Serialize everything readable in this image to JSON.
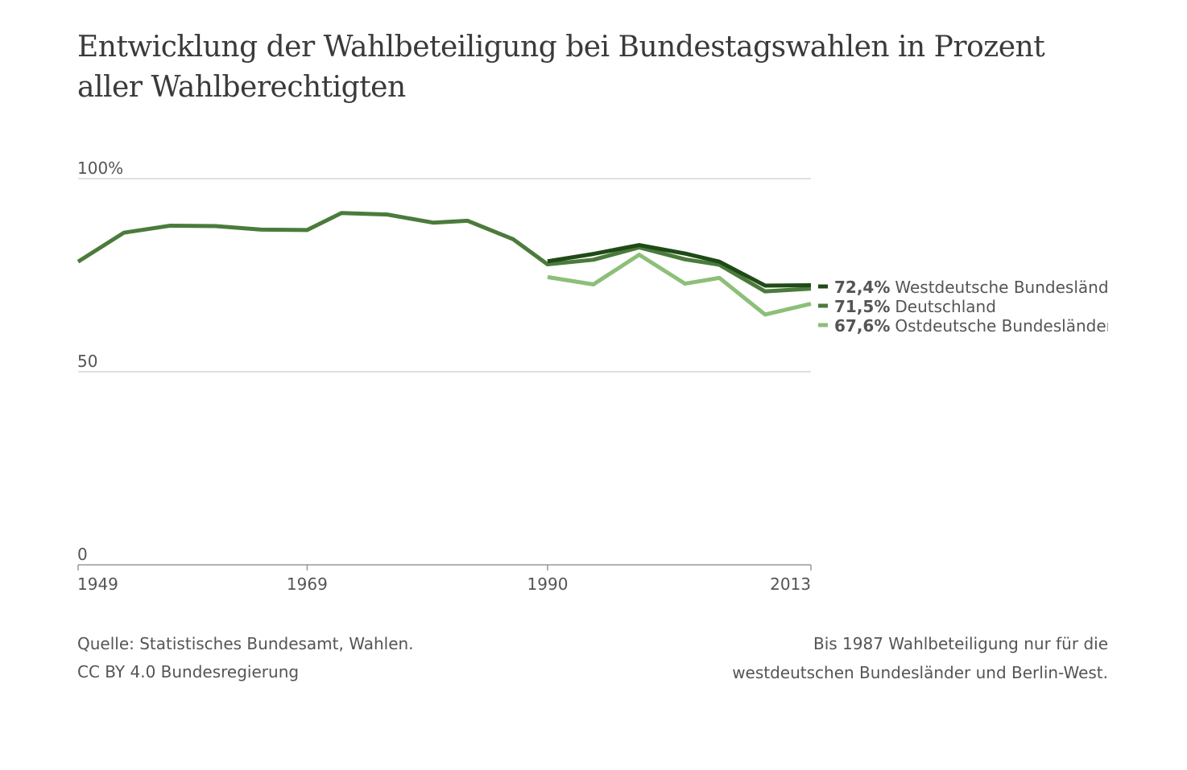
{
  "chart_data": {
    "type": "line",
    "title": "Entwicklung der Wahlbeteiligung bei Bundestagswahlen in Prozent aller Wahlberechtigten",
    "x": [
      1949,
      1953,
      1957,
      1961,
      1965,
      1969,
      1972,
      1976,
      1980,
      1983,
      1987,
      1990,
      1994,
      1998,
      2002,
      2005,
      2009,
      2013
    ],
    "series": [
      {
        "name": "Westdeutsche Bundesländer",
        "color": "#1f4a16",
        "values": [
          null,
          null,
          null,
          null,
          null,
          null,
          null,
          null,
          null,
          null,
          null,
          78.6,
          80.5,
          82.8,
          80.6,
          78.5,
          72.3,
          72.4
        ],
        "value_labels": [
          null,
          null,
          null,
          null,
          null,
          null,
          null,
          null,
          null,
          null,
          null,
          null,
          null,
          null,
          null,
          null,
          null,
          "72,4%"
        ]
      },
      {
        "name": "Deutschland",
        "color": "#4b7b3b",
        "values": [
          78.5,
          86.0,
          87.8,
          87.7,
          86.8,
          86.7,
          91.1,
          90.7,
          88.6,
          89.1,
          84.3,
          77.8,
          79.0,
          82.2,
          79.1,
          77.7,
          70.8,
          71.5
        ],
        "value_labels": [
          null,
          null,
          null,
          null,
          null,
          null,
          null,
          null,
          null,
          null,
          null,
          null,
          null,
          null,
          null,
          null,
          null,
          "71,5%"
        ]
      },
      {
        "name": "Ostdeutsche Bundesländer",
        "color": "#8cbf78",
        "values": [
          null,
          null,
          null,
          null,
          null,
          null,
          null,
          null,
          null,
          null,
          null,
          74.5,
          72.6,
          80.3,
          72.8,
          74.3,
          64.8,
          67.6
        ],
        "value_labels": [
          null,
          null,
          null,
          null,
          null,
          null,
          null,
          null,
          null,
          null,
          null,
          null,
          null,
          null,
          null,
          null,
          null,
          "67,6%"
        ]
      }
    ],
    "xlim": [
      1949,
      2013
    ],
    "xticks": [
      1949,
      1969,
      1990,
      2013
    ],
    "ylim": [
      0,
      100
    ],
    "yticks": [
      0,
      50,
      {
        "value": 100,
        "label": "100%"
      }
    ],
    "grid": true,
    "source": "Quelle: Statistisches Bundesamt, Wahlen.",
    "license": "CC BY 4.0 Bundesregierung",
    "note": "Bis 1987 Wahlbeteiligung nur für die westdeutschen Bundesländer und Berlin-West."
  }
}
